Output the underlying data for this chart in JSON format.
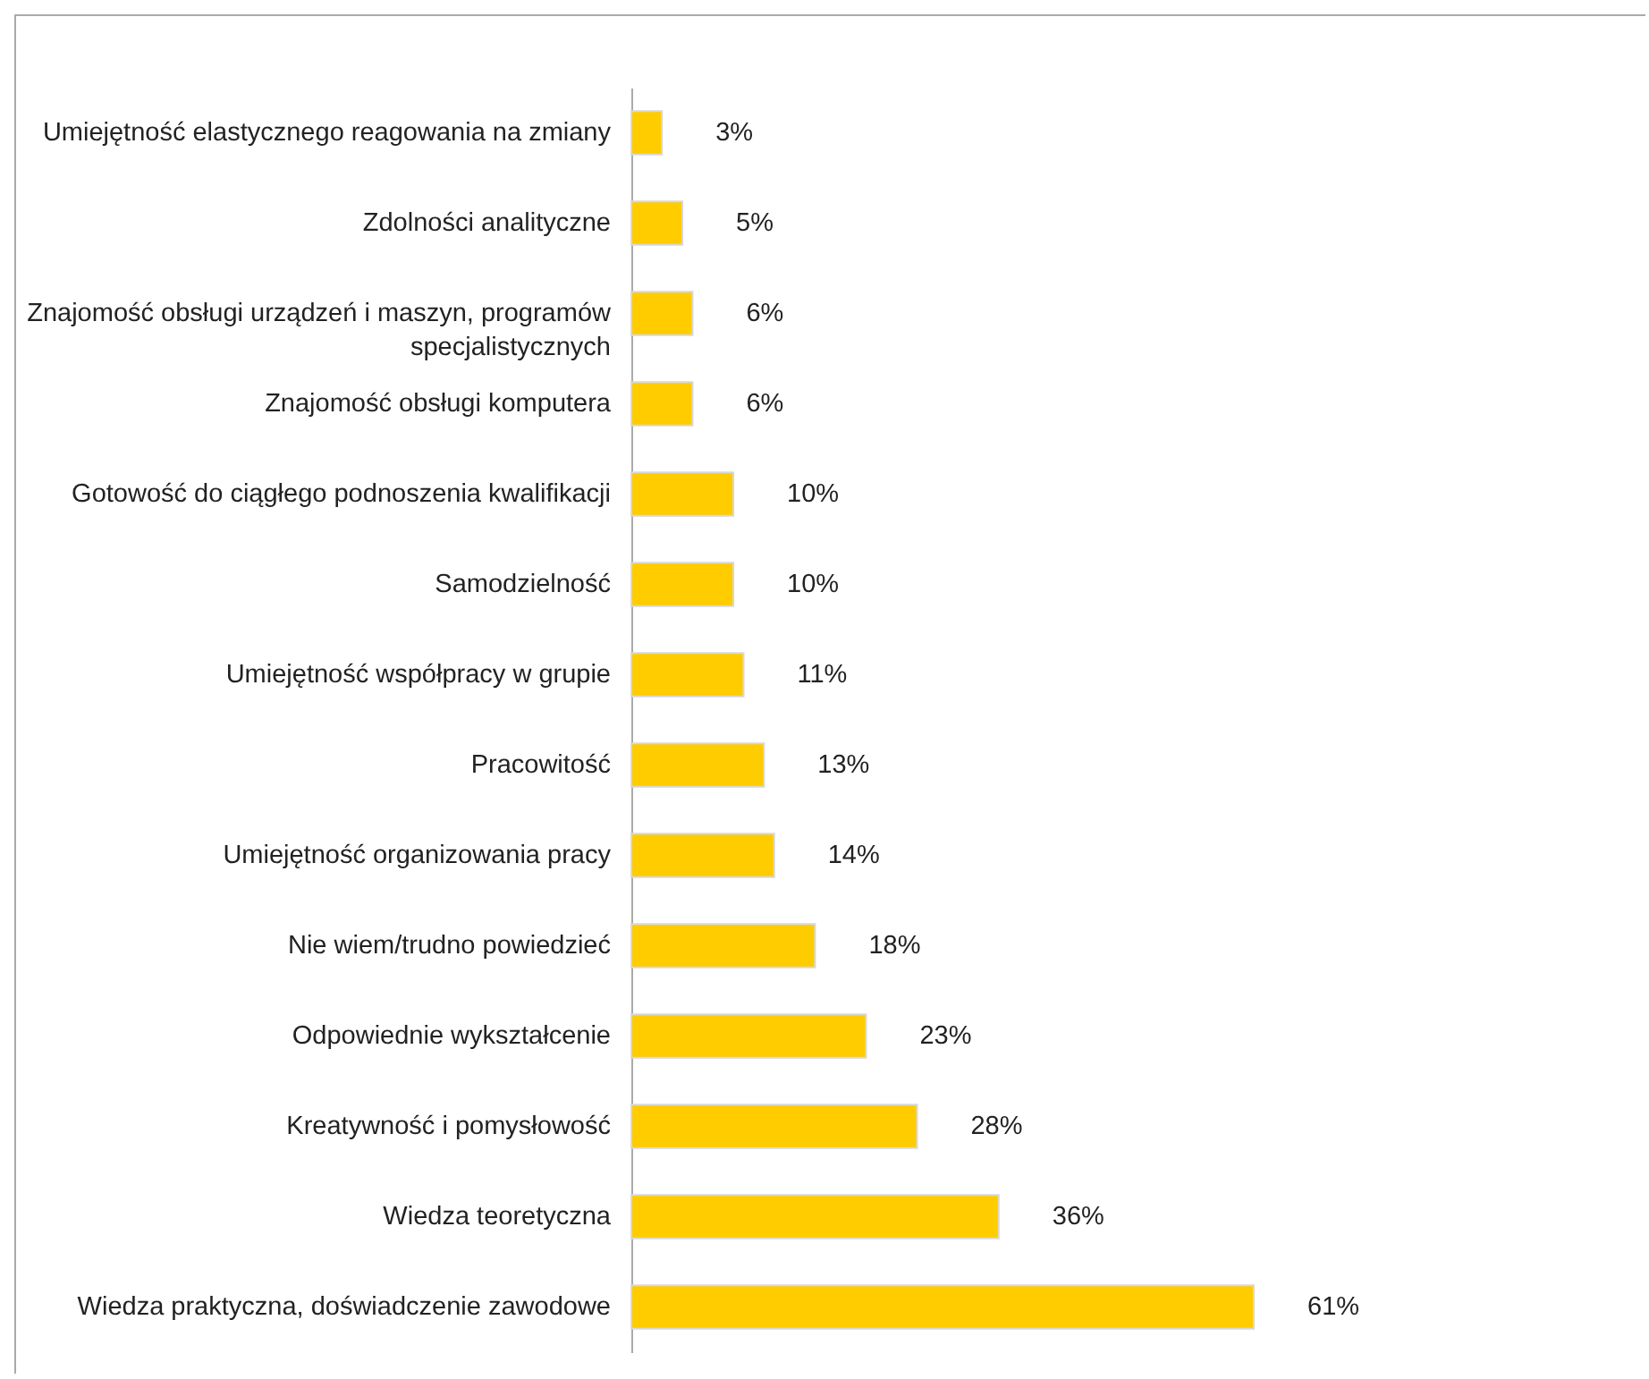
{
  "chart_data": {
    "type": "bar",
    "orientation": "horizontal",
    "categories": [
      "Umiejętność elastycznego reagowania na zmiany",
      "Zdolności analityczne",
      "Znajomość obsługi urządzeń i maszyn, programów specjalistycznych",
      "Znajomość obsługi komputera",
      "Gotowość do ciągłego podnoszenia kwalifikacji",
      "Samodzielność",
      "Umiejętność współpracy w grupie",
      "Pracowitość",
      "Umiejętność organizowania pracy",
      "Nie wiem/trudno powiedzieć",
      "Odpowiednie wykształcenie",
      "Kreatywność i pomysłowość",
      "Wiedza teoretyczna",
      "Wiedza praktyczna, doświadczenie zawodowe"
    ],
    "values": [
      3,
      5,
      6,
      6,
      10,
      10,
      11,
      13,
      14,
      18,
      23,
      28,
      36,
      61
    ],
    "value_labels": [
      "3%",
      "5%",
      "6%",
      "6%",
      "10%",
      "10%",
      "11%",
      "13%",
      "14%",
      "18%",
      "23%",
      "28%",
      "36%",
      "61%"
    ],
    "color": "#ffcc00"
  }
}
